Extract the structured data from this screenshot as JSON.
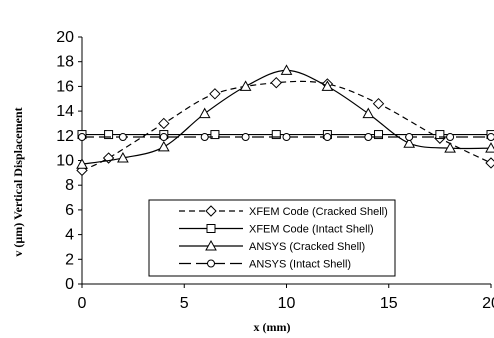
{
  "chart_data": {
    "type": "line",
    "xlabel": "x (mm)",
    "ylabel": "v (µm) Vertical Displacement",
    "xlim": [
      0,
      20
    ],
    "ylim": [
      0,
      20
    ],
    "xticks": [
      "0",
      "5",
      "10",
      "15",
      "20"
    ],
    "yticks": [
      "0",
      "2",
      "4",
      "6",
      "8",
      "10",
      "12",
      "14",
      "16",
      "18",
      "20"
    ],
    "grid": false,
    "legend_position": "bottom-center",
    "series": [
      {
        "name": "XFEM Code (Cracked Shell)",
        "line_style": "dashed",
        "marker": "diamond",
        "x": [
          0,
          1.3,
          4,
          6.5,
          9.5,
          12,
          14.5,
          17.5,
          20
        ],
        "y": [
          9.2,
          10.2,
          13.0,
          15.4,
          16.3,
          16.2,
          14.6,
          11.8,
          9.8
        ]
      },
      {
        "name": "XFEM Code (Intact Shell)",
        "line_style": "solid",
        "marker": "square",
        "x": [
          0,
          1.3,
          4,
          6.5,
          9.5,
          12,
          14.5,
          17.5,
          20
        ],
        "y": [
          12.1,
          12.1,
          12.1,
          12.1,
          12.1,
          12.1,
          12.1,
          12.1,
          12.1
        ]
      },
      {
        "name": "ANSYS (Cracked Shell)",
        "line_style": "solid",
        "marker": "triangle",
        "x": [
          0,
          2,
          4,
          6,
          8,
          10,
          12,
          14,
          16,
          18,
          20
        ],
        "y": [
          9.7,
          10.2,
          11.1,
          13.8,
          16.0,
          17.3,
          16.0,
          13.8,
          11.4,
          11.0,
          11.0
        ]
      },
      {
        "name": "ANSYS (Intact Shell)",
        "line_style": "long-dashed",
        "marker": "circle",
        "x": [
          0,
          2,
          4,
          6,
          8,
          10,
          12,
          14,
          16,
          18,
          20
        ],
        "y": [
          11.9,
          11.9,
          11.9,
          11.9,
          11.9,
          11.9,
          11.9,
          11.9,
          11.9,
          11.9,
          11.9
        ]
      }
    ]
  }
}
